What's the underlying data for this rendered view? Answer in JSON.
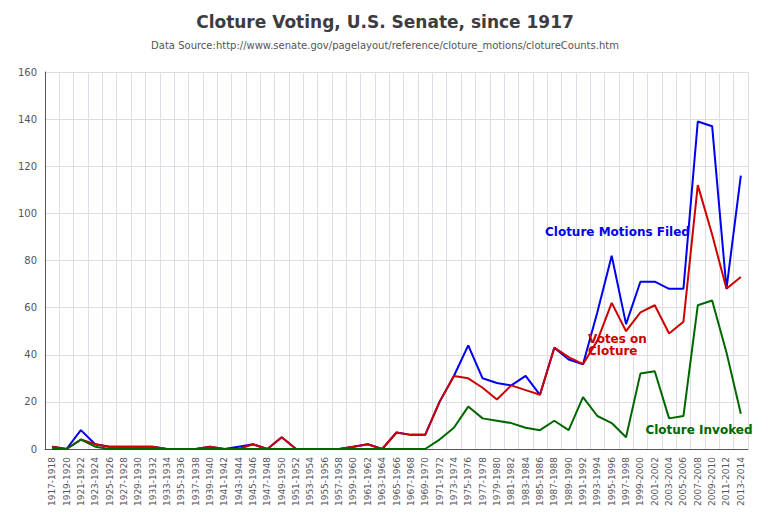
{
  "chart_data": {
    "type": "line",
    "title": "Cloture Voting, U.S. Senate, since 1917",
    "subtitle": "Data Source:http://www.senate.gov/pagelayout/reference/cloture_motions/clotureCounts.htm",
    "categories": [
      "1917-1918",
      "1919-1920",
      "1921-1922",
      "1923-1924",
      "1925-1926",
      "1927-1928",
      "1929-1930",
      "1931-1932",
      "1933-1934",
      "1935-1936",
      "1937-1938",
      "1939-1940",
      "1941-1942",
      "1943-1944",
      "1945-1946",
      "1947-1948",
      "1949-1950",
      "1951-1952",
      "1953-1954",
      "1955-1956",
      "1957-1958",
      "1959-1960",
      "1961-1962",
      "1963-1964",
      "1965-1966",
      "1967-1968",
      "1969-1970",
      "1971-1972",
      "1973-1974",
      "1975-1976",
      "1977-1978",
      "1979-1980",
      "1981-1982",
      "1983-1984",
      "1985-1986",
      "1987-1988",
      "1989-1990",
      "1991-1992",
      "1993-1994",
      "1995-1996",
      "1997-1998",
      "1999-2000",
      "2001-2002",
      "2003-2004",
      "2005-2006",
      "2007-2008",
      "2009-2010",
      "2011-2012",
      "2013-2014"
    ],
    "series": [
      {
        "name": "Cloture Motions Filed",
        "color": "#0000ee",
        "values": [
          1,
          0,
          8,
          2,
          1,
          1,
          1,
          1,
          0,
          0,
          0,
          1,
          0,
          1,
          2,
          0,
          5,
          0,
          0,
          0,
          0,
          1,
          2,
          0,
          7,
          6,
          6,
          20,
          31,
          44,
          30,
          28,
          27,
          31,
          23,
          43,
          38,
          36,
          58,
          82,
          53,
          71,
          71,
          68,
          68,
          139,
          137,
          68,
          116
        ]
      },
      {
        "name": "Votes on\nCloture",
        "color": "#cc0000",
        "values": [
          1,
          0,
          4,
          2,
          1,
          1,
          1,
          1,
          0,
          0,
          0,
          1,
          0,
          0,
          2,
          0,
          5,
          0,
          0,
          0,
          0,
          1,
          2,
          0,
          7,
          6,
          6,
          20,
          31,
          30,
          26,
          21,
          27,
          25,
          23,
          43,
          39,
          36,
          46,
          62,
          50,
          58,
          61,
          49,
          54,
          112,
          91,
          68,
          73
        ]
      },
      {
        "name": "Cloture Invoked",
        "color": "#006600",
        "values": [
          0,
          0,
          4,
          1,
          0,
          0,
          0,
          0,
          0,
          0,
          0,
          0,
          0,
          0,
          0,
          0,
          0,
          0,
          0,
          0,
          0,
          0,
          0,
          0,
          0,
          0,
          0,
          4,
          9,
          18,
          13,
          12,
          11,
          9,
          8,
          12,
          8,
          22,
          14,
          11,
          5,
          32,
          33,
          13,
          14,
          61,
          63,
          41,
          15
        ]
      }
    ],
    "ylim": [
      0,
      160
    ],
    "yticks": [
      0,
      20,
      40,
      60,
      80,
      100,
      120,
      140,
      160
    ],
    "grid": true
  }
}
